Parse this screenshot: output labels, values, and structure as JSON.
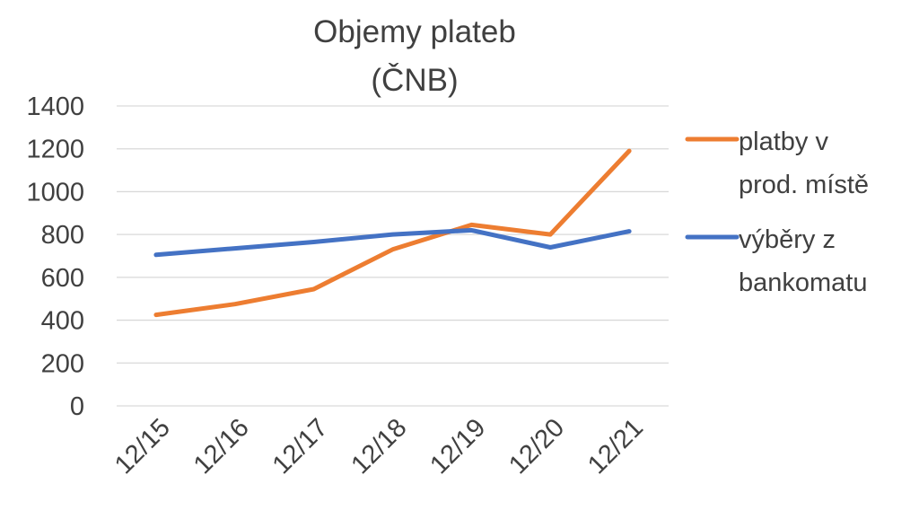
{
  "chart_data": {
    "type": "line",
    "title": [
      "Objemy plateb",
      "(ČNB)"
    ],
    "categories": [
      "12/15",
      "12/16",
      "12/17",
      "12/18",
      "12/19",
      "12/20",
      "12/21"
    ],
    "ylim": [
      0,
      1400
    ],
    "yticks": [
      0,
      200,
      400,
      600,
      800,
      1000,
      1200,
      1400
    ],
    "grid": true,
    "legend_position": "right",
    "series": [
      {
        "name": [
          "platby v",
          "prod. místě"
        ],
        "color": "#ed7d31",
        "values": [
          425,
          475,
          545,
          730,
          845,
          800,
          1190
        ]
      },
      {
        "name": [
          "výběry z",
          "bankomatu"
        ],
        "color": "#4472c4",
        "values": [
          705,
          735,
          765,
          800,
          820,
          740,
          815
        ]
      }
    ]
  }
}
